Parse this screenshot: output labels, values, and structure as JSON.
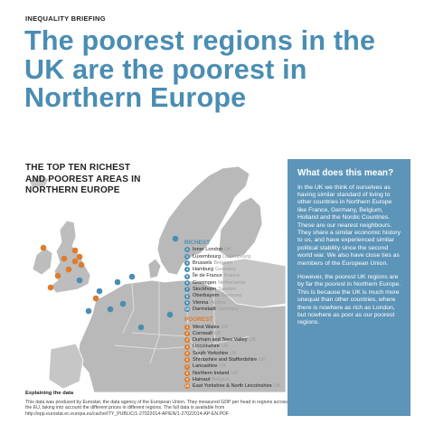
{
  "kicker": "INEQUALITY BRIEFING",
  "headline": "The poorest regions in the UK are the poorest in Northern Europe",
  "map_title": "THE TOP TEN RICHEST AND POOREST AREAS IN NORTHERN EUROPE",
  "legend": {
    "richest_heading": "RICHEST",
    "richest": [
      {
        "num": "1",
        "area": "Inner London",
        "country": "UK"
      },
      {
        "num": "2",
        "area": "Luxembourg",
        "country": "Luxembourg"
      },
      {
        "num": "3",
        "area": "Brussels",
        "country": "Belgium"
      },
      {
        "num": "4",
        "area": "Hamburg",
        "country": "Germany"
      },
      {
        "num": "5",
        "area": "Île de France",
        "country": "France"
      },
      {
        "num": "6",
        "area": "Groningen",
        "country": "Netherlands"
      },
      {
        "num": "7",
        "area": "Stockholm",
        "country": "Sweden"
      },
      {
        "num": "8",
        "area": "Oberbayern",
        "country": "Germany"
      },
      {
        "num": "9",
        "area": "Vienna",
        "country": "Austria"
      },
      {
        "num": "10",
        "area": "Darmstadt",
        "country": "Germany"
      }
    ],
    "poorest_heading": "POOREST",
    "poorest": [
      {
        "num": "1",
        "area": "West Wales",
        "country": "UK"
      },
      {
        "num": "2",
        "area": "Cornwall",
        "country": "UK"
      },
      {
        "num": "3",
        "area": "Durham and Tees Valley",
        "country": "UK"
      },
      {
        "num": "4",
        "area": "Lincolnshire",
        "country": "UK"
      },
      {
        "num": "5",
        "area": "South Yorkshire",
        "country": "UK"
      },
      {
        "num": "6",
        "area": "Shropshire and Staffordshire",
        "country": "UK"
      },
      {
        "num": "7",
        "area": "Lancashire",
        "country": "UK"
      },
      {
        "num": "8",
        "area": "Northern Ireland",
        "country": "UK"
      },
      {
        "num": "9",
        "area": "Hainaut",
        "country": "Belgium"
      },
      {
        "num": "10",
        "area": "East Yorkshire & North Lincolnshire",
        "country": "UK"
      }
    ]
  },
  "explain": {
    "title": "Explaining the data",
    "body": "This data was produced by Eurostat, the data agency of the European Union. They measured GDP per head in regions across the EU, taking into account the different prices in different regions. The full data is available from http://epp.eurostat.ec.europa.eu/cache/ITY_PUBLIC/1-27022014-AP/EN/1-27022014-AP-EN.PDF"
  },
  "sidebar": {
    "title": "What does this mean?",
    "p1": "In the UK we think of ourselves as having similar standard of living to other countries in Northern Europe like France, Germany, Belgium, Holland and the Nordic Countries. These are our nearest neighbours. They share a similar economic history to us, and have experienced similar political stability since the second world war. We also have close ties as members of the European Union.",
    "p2": "However, the poorest UK regions are by far the poorest in Northern Europe. This is because the UK is much more unequal than other countries, where there is nowhere as rich as London, but nowhere as poor as our poorest regions."
  },
  "colors": {
    "accent_blue": "#4a8db3",
    "accent_orange": "#e07b2a",
    "sidebar_bg": "#5d95b8",
    "land_grey": "#b9b9b9"
  },
  "map_markers": {
    "richest": [
      "1",
      "2",
      "3",
      "4",
      "5",
      "6",
      "7",
      "8",
      "9",
      "10"
    ],
    "poorest": [
      "1",
      "2",
      "3",
      "4",
      "5",
      "6",
      "7",
      "8",
      "9",
      "10"
    ]
  }
}
